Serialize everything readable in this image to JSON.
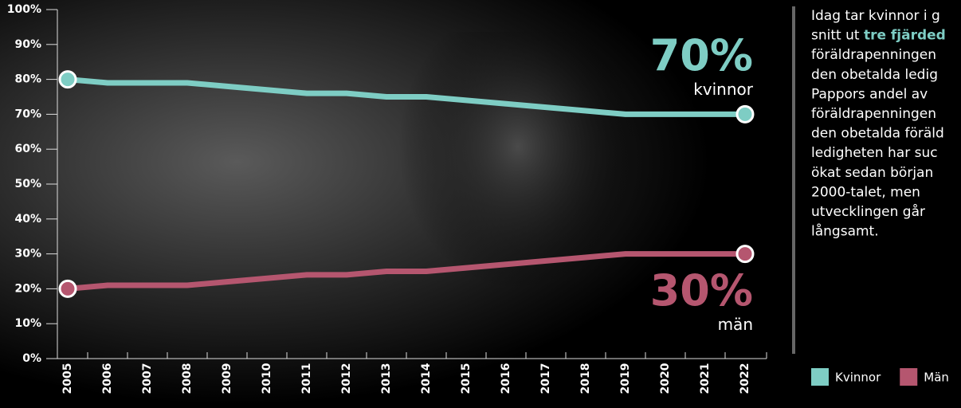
{
  "chart_data": {
    "type": "line",
    "categories": [
      "2005",
      "2006",
      "2007",
      "2008",
      "2009",
      "2010",
      "2011",
      "2012",
      "2013",
      "2014",
      "2015",
      "2016",
      "2017",
      "2018",
      "2019",
      "2020",
      "2021",
      "2022"
    ],
    "series": [
      {
        "name": "Kvinnor",
        "color": "#7ecdc4",
        "values": [
          80,
          79,
          79,
          79,
          78,
          77,
          76,
          76,
          75,
          75,
          74,
          73,
          72,
          71,
          70,
          70,
          70,
          70
        ]
      },
      {
        "name": "Män",
        "color": "#b5566f",
        "values": [
          20,
          21,
          21,
          21,
          22,
          23,
          24,
          24,
          25,
          25,
          26,
          27,
          28,
          29,
          30,
          30,
          30,
          30
        ]
      }
    ],
    "ylim": [
      0,
      100
    ],
    "yticks": [
      {
        "value": 0,
        "label": "0%"
      },
      {
        "value": 10,
        "label": "10%"
      },
      {
        "value": 20,
        "label": "20%"
      },
      {
        "value": 30,
        "label": "30%"
      },
      {
        "value": 40,
        "label": "40%"
      },
      {
        "value": 50,
        "label": "50%"
      },
      {
        "value": 60,
        "label": "60%"
      },
      {
        "value": 70,
        "label": "70%"
      },
      {
        "value": 80,
        "label": "80%"
      },
      {
        "value": 90,
        "label": "90%"
      },
      {
        "value": 100,
        "label": "100%"
      }
    ],
    "annotations": [
      {
        "text": "70%",
        "series": 0,
        "big": true
      },
      {
        "text": "kvinnor",
        "series": 0,
        "big": false
      },
      {
        "text": "30%",
        "series": 1,
        "big": true
      },
      {
        "text": "män",
        "series": 1,
        "big": false
      }
    ],
    "legend": "bottom-right"
  },
  "side_text": {
    "lines": [
      [
        {
          "text": "Idag tar kvinnor i g"
        }
      ],
      [
        {
          "text": "snitt ut "
        },
        {
          "text": "tre fjärded",
          "bold": true
        }
      ],
      [
        {
          "text": "föräldrapenningen"
        }
      ],
      [
        {
          "text": "den obetalda ledig"
        }
      ],
      [
        {
          "text": "Pappors andel av"
        }
      ],
      [
        {
          "text": "föräldrapenningen"
        }
      ],
      [
        {
          "text": "den obetalda föräld"
        }
      ],
      [
        {
          "text": "ledigheten har suc"
        }
      ],
      [
        {
          "text": "ökat sedan början"
        }
      ],
      [
        {
          "text": "2000-talet, men"
        }
      ],
      [
        {
          "text": "utvecklingen går"
        }
      ],
      [
        {
          "text": "långsamt."
        }
      ]
    ]
  }
}
